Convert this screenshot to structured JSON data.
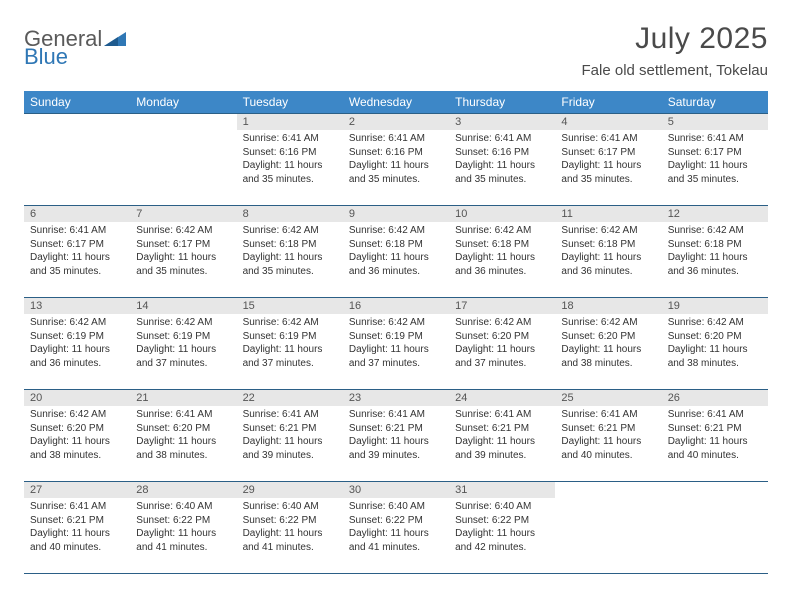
{
  "logo": {
    "word1": "General",
    "word2": "Blue",
    "word1_color": "#5a5a5a",
    "word2_color": "#2f77b5",
    "triangle_color": "#2f77b5"
  },
  "title": "July 2025",
  "location": "Fale old settlement, Tokelau",
  "header_bg": "#3d87c7",
  "header_text_color": "#ffffff",
  "daynum_bg": "#e7e7e7",
  "border_color": "#2b5f86",
  "body_text_color": "#333333",
  "weekdays": [
    "Sunday",
    "Monday",
    "Tuesday",
    "Wednesday",
    "Thursday",
    "Friday",
    "Saturday"
  ],
  "weeks": [
    [
      null,
      null,
      {
        "n": "1",
        "sunrise": "6:41 AM",
        "sunset": "6:16 PM",
        "daylight": "11 hours and 35 minutes."
      },
      {
        "n": "2",
        "sunrise": "6:41 AM",
        "sunset": "6:16 PM",
        "daylight": "11 hours and 35 minutes."
      },
      {
        "n": "3",
        "sunrise": "6:41 AM",
        "sunset": "6:16 PM",
        "daylight": "11 hours and 35 minutes."
      },
      {
        "n": "4",
        "sunrise": "6:41 AM",
        "sunset": "6:17 PM",
        "daylight": "11 hours and 35 minutes."
      },
      {
        "n": "5",
        "sunrise": "6:41 AM",
        "sunset": "6:17 PM",
        "daylight": "11 hours and 35 minutes."
      }
    ],
    [
      {
        "n": "6",
        "sunrise": "6:41 AM",
        "sunset": "6:17 PM",
        "daylight": "11 hours and 35 minutes."
      },
      {
        "n": "7",
        "sunrise": "6:42 AM",
        "sunset": "6:17 PM",
        "daylight": "11 hours and 35 minutes."
      },
      {
        "n": "8",
        "sunrise": "6:42 AM",
        "sunset": "6:18 PM",
        "daylight": "11 hours and 35 minutes."
      },
      {
        "n": "9",
        "sunrise": "6:42 AM",
        "sunset": "6:18 PM",
        "daylight": "11 hours and 36 minutes."
      },
      {
        "n": "10",
        "sunrise": "6:42 AM",
        "sunset": "6:18 PM",
        "daylight": "11 hours and 36 minutes."
      },
      {
        "n": "11",
        "sunrise": "6:42 AM",
        "sunset": "6:18 PM",
        "daylight": "11 hours and 36 minutes."
      },
      {
        "n": "12",
        "sunrise": "6:42 AM",
        "sunset": "6:18 PM",
        "daylight": "11 hours and 36 minutes."
      }
    ],
    [
      {
        "n": "13",
        "sunrise": "6:42 AM",
        "sunset": "6:19 PM",
        "daylight": "11 hours and 36 minutes."
      },
      {
        "n": "14",
        "sunrise": "6:42 AM",
        "sunset": "6:19 PM",
        "daylight": "11 hours and 37 minutes."
      },
      {
        "n": "15",
        "sunrise": "6:42 AM",
        "sunset": "6:19 PM",
        "daylight": "11 hours and 37 minutes."
      },
      {
        "n": "16",
        "sunrise": "6:42 AM",
        "sunset": "6:19 PM",
        "daylight": "11 hours and 37 minutes."
      },
      {
        "n": "17",
        "sunrise": "6:42 AM",
        "sunset": "6:20 PM",
        "daylight": "11 hours and 37 minutes."
      },
      {
        "n": "18",
        "sunrise": "6:42 AM",
        "sunset": "6:20 PM",
        "daylight": "11 hours and 38 minutes."
      },
      {
        "n": "19",
        "sunrise": "6:42 AM",
        "sunset": "6:20 PM",
        "daylight": "11 hours and 38 minutes."
      }
    ],
    [
      {
        "n": "20",
        "sunrise": "6:42 AM",
        "sunset": "6:20 PM",
        "daylight": "11 hours and 38 minutes."
      },
      {
        "n": "21",
        "sunrise": "6:41 AM",
        "sunset": "6:20 PM",
        "daylight": "11 hours and 38 minutes."
      },
      {
        "n": "22",
        "sunrise": "6:41 AM",
        "sunset": "6:21 PM",
        "daylight": "11 hours and 39 minutes."
      },
      {
        "n": "23",
        "sunrise": "6:41 AM",
        "sunset": "6:21 PM",
        "daylight": "11 hours and 39 minutes."
      },
      {
        "n": "24",
        "sunrise": "6:41 AM",
        "sunset": "6:21 PM",
        "daylight": "11 hours and 39 minutes."
      },
      {
        "n": "25",
        "sunrise": "6:41 AM",
        "sunset": "6:21 PM",
        "daylight": "11 hours and 40 minutes."
      },
      {
        "n": "26",
        "sunrise": "6:41 AM",
        "sunset": "6:21 PM",
        "daylight": "11 hours and 40 minutes."
      }
    ],
    [
      {
        "n": "27",
        "sunrise": "6:41 AM",
        "sunset": "6:21 PM",
        "daylight": "11 hours and 40 minutes."
      },
      {
        "n": "28",
        "sunrise": "6:40 AM",
        "sunset": "6:22 PM",
        "daylight": "11 hours and 41 minutes."
      },
      {
        "n": "29",
        "sunrise": "6:40 AM",
        "sunset": "6:22 PM",
        "daylight": "11 hours and 41 minutes."
      },
      {
        "n": "30",
        "sunrise": "6:40 AM",
        "sunset": "6:22 PM",
        "daylight": "11 hours and 41 minutes."
      },
      {
        "n": "31",
        "sunrise": "6:40 AM",
        "sunset": "6:22 PM",
        "daylight": "11 hours and 42 minutes."
      },
      null,
      null
    ]
  ],
  "labels": {
    "sunrise": "Sunrise:",
    "sunset": "Sunset:",
    "daylight": "Daylight:"
  }
}
